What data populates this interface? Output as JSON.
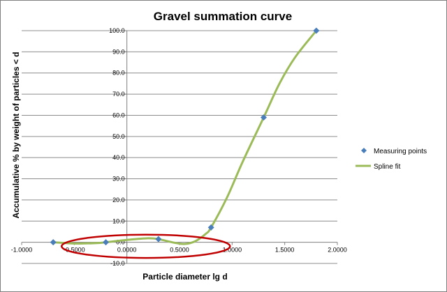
{
  "chart_data": {
    "type": "scatter",
    "title": "Gravel summation curve",
    "xlabel": "Particle diameter lg d",
    "ylabel": "Accumulative % by weight of particles < d",
    "xlim": [
      -1.0,
      2.0
    ],
    "ylim": [
      -10.0,
      100.0
    ],
    "x_ticks": [
      -1.0,
      -0.5,
      0.0,
      0.5,
      1.0,
      1.5,
      2.0
    ],
    "x_tick_labels": [
      "-1.0000",
      "-0.5000",
      "0.0000",
      "0.5000",
      "1.0000",
      "1.5000",
      "2.0000"
    ],
    "y_ticks": [
      -10,
      0,
      10,
      20,
      30,
      40,
      50,
      60,
      70,
      80,
      90,
      100
    ],
    "y_tick_labels": [
      "-10.0",
      "0.0",
      "10.0",
      "20.0",
      "30.0",
      "40.0",
      "50.0",
      "60.0",
      "70.0",
      "80.0",
      "90.0",
      "100.0"
    ],
    "grid": "horizontal",
    "legend_position": "right",
    "series": [
      {
        "name": "Measuring points",
        "type": "scatter",
        "marker": "diamond",
        "color": "#4a7ebb",
        "x": [
          -0.7,
          -0.2,
          0.3,
          0.8,
          1.3,
          1.8
        ],
        "y": [
          0.0,
          0.0,
          1.5,
          7.0,
          59.0,
          100.0
        ]
      },
      {
        "name": "Spline fit",
        "type": "line",
        "color": "#9bbb59",
        "x": [
          -0.7,
          -0.5,
          -0.3,
          -0.2,
          0.0,
          0.2,
          0.3,
          0.45,
          0.55,
          0.65,
          0.75,
          0.8,
          0.95,
          1.1,
          1.3,
          1.45,
          1.6,
          1.8
        ],
        "y": [
          0.0,
          -0.6,
          -0.4,
          0.0,
          1.1,
          1.9,
          1.5,
          -0.2,
          -0.8,
          0.5,
          4.0,
          7.0,
          21.0,
          38.0,
          59.0,
          75.0,
          87.5,
          100.0
        ]
      }
    ],
    "annotation": {
      "shape": "ellipse",
      "color": "#c00000",
      "x_range": [
        -0.62,
        0.98
      ],
      "y_range": [
        -7.4,
        3.6
      ]
    }
  }
}
